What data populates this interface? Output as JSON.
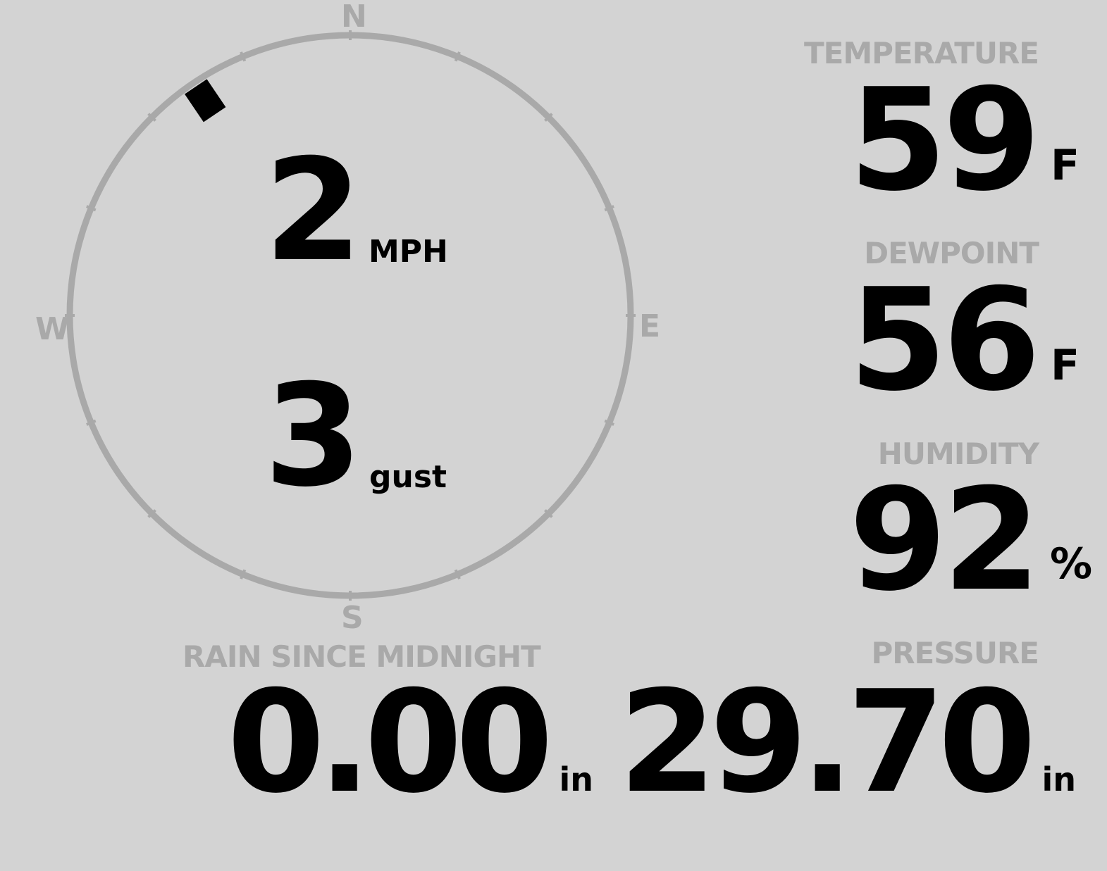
{
  "compass": {
    "north": "N",
    "south": "S",
    "east": "E",
    "west": "W",
    "wind_direction_deg": 326,
    "ring_color": "#a9a9a9"
  },
  "wind": {
    "speed": "2",
    "speed_unit": "MPH",
    "gust": "3",
    "gust_unit": "gust"
  },
  "temperature": {
    "label": "TEMPERATURE",
    "value": "59",
    "unit": "F"
  },
  "dewpoint": {
    "label": "DEWPOINT",
    "value": "56",
    "unit": "F"
  },
  "humidity": {
    "label": "HUMIDITY",
    "value": "92",
    "unit": "%"
  },
  "rain": {
    "label": "RAIN SINCE MIDNIGHT",
    "value": "0.00",
    "unit": "in"
  },
  "pressure": {
    "label": "PRESSURE",
    "value": "29.70",
    "unit": "in"
  },
  "colors": {
    "background": "#d3d3d3",
    "label": "#a9a9a9",
    "value": "#000000"
  }
}
